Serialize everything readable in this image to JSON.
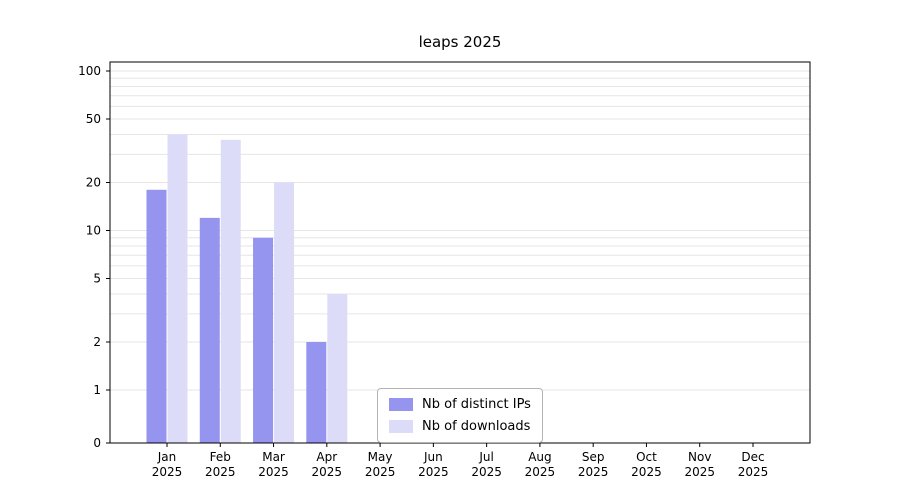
{
  "chart_data": {
    "type": "bar",
    "title": "leaps 2025",
    "categories": [
      "Jan",
      "Feb",
      "Mar",
      "Apr",
      "May",
      "Jun",
      "Jul",
      "Aug",
      "Sep",
      "Oct",
      "Nov",
      "Dec"
    ],
    "year_label": "2025",
    "series": [
      {
        "name": "Nb of distinct IPs",
        "color": "#9595f0",
        "values": [
          18,
          12,
          9,
          2,
          0,
          0,
          0,
          0,
          0,
          0,
          0,
          0
        ]
      },
      {
        "name": "Nb of downloads",
        "color": "#dcdcf9",
        "values": [
          40,
          37,
          20,
          4,
          0,
          0,
          0,
          0,
          0,
          0,
          0,
          0
        ]
      }
    ],
    "yscale": "symlog",
    "ylim": [
      0,
      115
    ],
    "yticks": [
      0,
      1,
      2,
      5,
      10,
      20,
      50,
      100
    ],
    "gridlines": [
      1,
      2,
      3,
      4,
      5,
      6,
      7,
      8,
      9,
      10,
      20,
      30,
      40,
      50,
      60,
      70,
      80,
      90,
      100
    ],
    "grid": true,
    "legend_position": "lower center",
    "xlabel": "",
    "ylabel": ""
  }
}
